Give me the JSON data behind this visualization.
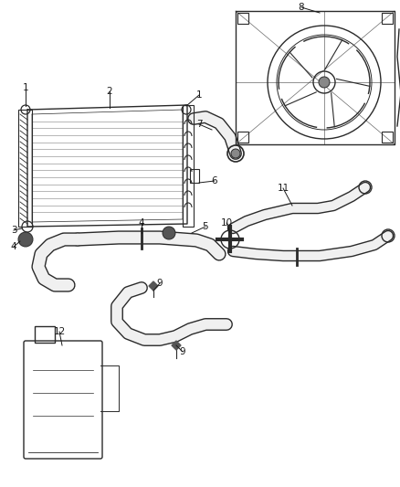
{
  "bg_color": "#ffffff",
  "line_color": "#2a2a2a",
  "label_color": "#1a1a1a",
  "fig_width": 4.38,
  "fig_height": 5.33,
  "dpi": 100
}
